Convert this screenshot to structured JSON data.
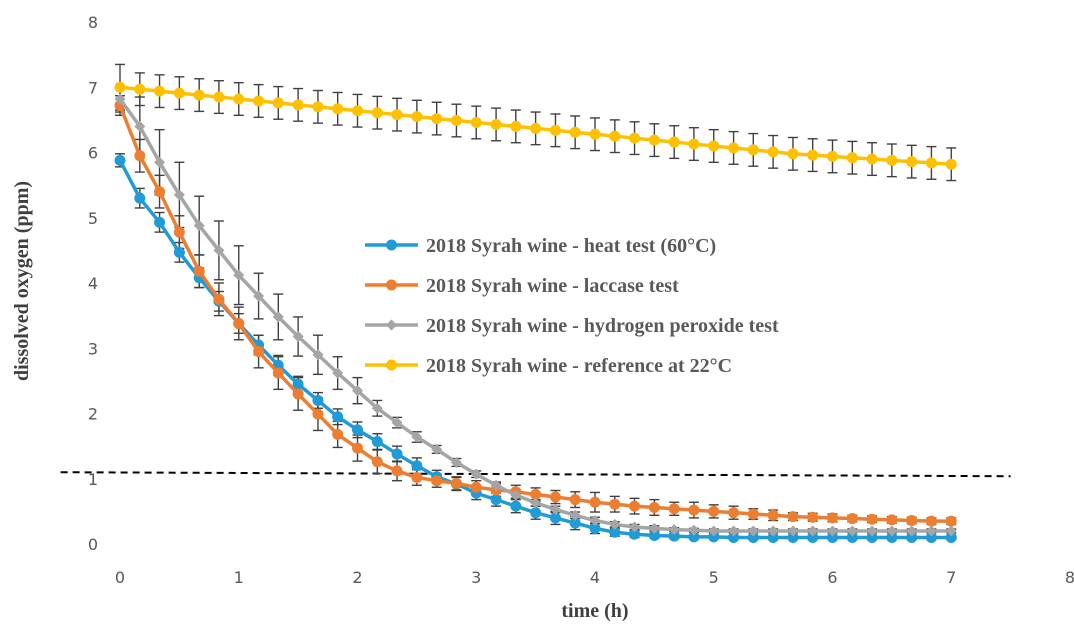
{
  "chart_data": {
    "type": "line",
    "title": "",
    "xlabel": "time (h)",
    "ylabel": "dissolved oxygen (ppm)",
    "xlim": [
      0,
      8
    ],
    "ylim": [
      0,
      8
    ],
    "xticks": [
      "0",
      "1",
      "2",
      "3",
      "4",
      "5",
      "6",
      "7",
      "8"
    ],
    "yticks": [
      "0",
      "1",
      "2",
      "3",
      "4",
      "5",
      "6",
      "7",
      "8"
    ],
    "grid": false,
    "legend_position": "center",
    "threshold_line": {
      "y": 1.1,
      "style": "dashed",
      "color": "#000000",
      "x_range": [
        -0.5,
        7.5
      ]
    },
    "x": [
      0,
      0.167,
      0.333,
      0.5,
      0.667,
      0.833,
      1,
      1.167,
      1.333,
      1.5,
      1.667,
      1.833,
      2,
      2.167,
      2.333,
      2.5,
      2.667,
      2.833,
      3,
      3.167,
      3.333,
      3.5,
      3.667,
      3.833,
      4,
      4.167,
      4.333,
      4.5,
      4.667,
      4.833,
      5,
      5.167,
      5.333,
      5.5,
      5.667,
      5.833,
      6,
      6.167,
      6.333,
      6.5,
      6.667,
      6.833,
      7
    ],
    "series": [
      {
        "name": "2018 Syrah wine - heat test (60°C)",
        "color": "#1f9bd7",
        "marker": "circle",
        "values": [
          5.88,
          5.3,
          4.93,
          4.47,
          4.08,
          3.72,
          3.38,
          3.05,
          2.74,
          2.45,
          2.2,
          1.95,
          1.75,
          1.57,
          1.38,
          1.2,
          1.03,
          0.92,
          0.78,
          0.68,
          0.58,
          0.48,
          0.4,
          0.32,
          0.24,
          0.18,
          0.15,
          0.13,
          0.12,
          0.11,
          0.11,
          0.1,
          0.1,
          0.1,
          0.1,
          0.1,
          0.1,
          0.1,
          0.1,
          0.1,
          0.1,
          0.1,
          0.1
        ],
        "errors": [
          0.1,
          0.15,
          0.15,
          0.15,
          0.15,
          0.15,
          0.15,
          0.15,
          0.15,
          0.12,
          0.12,
          0.12,
          0.12,
          0.12,
          0.12,
          0.12,
          0.1,
          0.1,
          0.1,
          0.1,
          0.1,
          0.1,
          0.1,
          0.1,
          0.08,
          0.06,
          0.05,
          0.04,
          0.04,
          0.03,
          0.03,
          0.03,
          0.03,
          0.03,
          0.03,
          0.03,
          0.03,
          0.03,
          0.03,
          0.03,
          0.03,
          0.03,
          0.03
        ]
      },
      {
        "name": "2018 Syrah wine - laccase test",
        "color": "#ed7d31",
        "marker": "circle",
        "values": [
          6.72,
          5.95,
          5.4,
          4.78,
          4.18,
          3.75,
          3.38,
          2.95,
          2.62,
          2.3,
          1.99,
          1.68,
          1.47,
          1.26,
          1.12,
          1.02,
          0.97,
          0.93,
          0.87,
          0.83,
          0.8,
          0.76,
          0.72,
          0.68,
          0.64,
          0.61,
          0.58,
          0.56,
          0.54,
          0.52,
          0.5,
          0.48,
          0.46,
          0.44,
          0.42,
          0.41,
          0.4,
          0.39,
          0.38,
          0.37,
          0.36,
          0.35,
          0.35
        ],
        "errors": [
          0.15,
          0.25,
          0.25,
          0.25,
          0.25,
          0.25,
          0.25,
          0.25,
          0.25,
          0.25,
          0.25,
          0.2,
          0.2,
          0.18,
          0.15,
          0.12,
          0.1,
          0.1,
          0.1,
          0.1,
          0.1,
          0.1,
          0.1,
          0.12,
          0.15,
          0.12,
          0.12,
          0.12,
          0.1,
          0.12,
          0.1,
          0.1,
          0.08,
          0.08,
          0.06,
          0.06,
          0.06,
          0.05,
          0.05,
          0.05,
          0.05,
          0.05,
          0.05
        ]
      },
      {
        "name": "2018 Syrah wine - hydrogen peroxide test",
        "color": "#a5a5a5",
        "marker": "diamond",
        "values": [
          6.82,
          6.4,
          5.85,
          5.35,
          4.88,
          4.5,
          4.12,
          3.8,
          3.48,
          3.18,
          2.9,
          2.62,
          2.35,
          2.08,
          1.86,
          1.64,
          1.45,
          1.25,
          1.07,
          0.9,
          0.75,
          0.63,
          0.53,
          0.44,
          0.36,
          0.3,
          0.26,
          0.24,
          0.22,
          0.21,
          0.2,
          0.2,
          0.2,
          0.2,
          0.2,
          0.2,
          0.2,
          0.2,
          0.2,
          0.2,
          0.2,
          0.2,
          0.2
        ],
        "errors": [
          0.2,
          0.45,
          0.5,
          0.5,
          0.45,
          0.45,
          0.45,
          0.35,
          0.35,
          0.3,
          0.3,
          0.25,
          0.2,
          0.12,
          0.08,
          0.08,
          0.06,
          0.06,
          0.05,
          0.05,
          0.05,
          0.05,
          0.05,
          0.05,
          0.05,
          0.04,
          0.04,
          0.04,
          0.03,
          0.03,
          0.03,
          0.03,
          0.03,
          0.03,
          0.03,
          0.03,
          0.03,
          0.03,
          0.03,
          0.03,
          0.03,
          0.03,
          0.03
        ]
      },
      {
        "name": "2018 Syrah wine - reference at 22°C",
        "color": "#ffc000",
        "marker": "circle",
        "values": [
          7.0,
          6.97,
          6.94,
          6.91,
          6.88,
          6.85,
          6.82,
          6.79,
          6.76,
          6.73,
          6.7,
          6.67,
          6.64,
          6.61,
          6.58,
          6.55,
          6.52,
          6.49,
          6.46,
          6.43,
          6.4,
          6.37,
          6.34,
          6.31,
          6.28,
          6.25,
          6.22,
          6.19,
          6.16,
          6.13,
          6.1,
          6.07,
          6.04,
          6.01,
          5.98,
          5.96,
          5.94,
          5.92,
          5.9,
          5.88,
          5.86,
          5.84,
          5.82
        ],
        "errors": [
          0.35,
          0.25,
          0.25,
          0.25,
          0.25,
          0.25,
          0.25,
          0.25,
          0.25,
          0.25,
          0.25,
          0.25,
          0.25,
          0.25,
          0.25,
          0.25,
          0.25,
          0.25,
          0.25,
          0.25,
          0.25,
          0.25,
          0.25,
          0.25,
          0.25,
          0.25,
          0.25,
          0.25,
          0.25,
          0.25,
          0.25,
          0.25,
          0.25,
          0.25,
          0.25,
          0.25,
          0.25,
          0.25,
          0.25,
          0.25,
          0.25,
          0.25,
          0.25
        ]
      }
    ]
  }
}
